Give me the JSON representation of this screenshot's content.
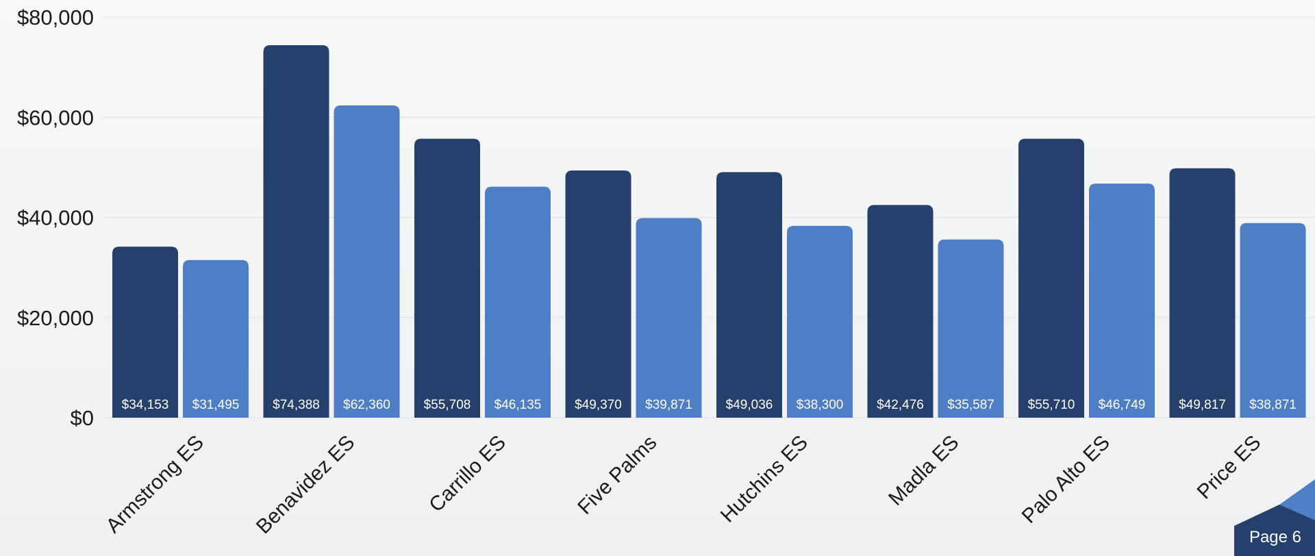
{
  "chart_data": {
    "type": "bar",
    "categories": [
      "Armstrong ES",
      "Benavidez ES",
      "Carrillo ES",
      "Five Palms",
      "Hutchins ES",
      "Madla ES",
      "Palo Alto ES",
      "Price ES"
    ],
    "series": [
      {
        "values": [
          34153,
          74388,
          55708,
          49370,
          49036,
          42476,
          55710,
          49817
        ],
        "color": "#25406c"
      },
      {
        "values": [
          31495,
          62360,
          46135,
          39871,
          38300,
          35587,
          46749,
          38871
        ],
        "color": "#4d7ec6"
      }
    ],
    "data_labels": [
      [
        "$34,153",
        "$74,388",
        "$55,708",
        "$49,370",
        "$49,036",
        "$42,476",
        "$55,710",
        "$49,817"
      ],
      [
        "$31,495",
        "$62,360",
        "$46,135",
        "$39,871",
        "$38,300",
        "$35,587",
        "$46,749",
        "$38,871"
      ]
    ],
    "yticks": [
      0,
      20000,
      40000,
      60000,
      80000
    ],
    "ytick_labels": [
      "$0",
      "$20,000",
      "$40,000",
      "$60,000",
      "$80,000"
    ],
    "ylim": [
      0,
      80000
    ],
    "grid": true,
    "legend": "none",
    "title": "",
    "xlabel": "",
    "ylabel": ""
  },
  "footer": {
    "page_label": "Page 6"
  },
  "colors": {
    "corner_dark": "#25406c",
    "corner_light": "#4d7ec6"
  }
}
